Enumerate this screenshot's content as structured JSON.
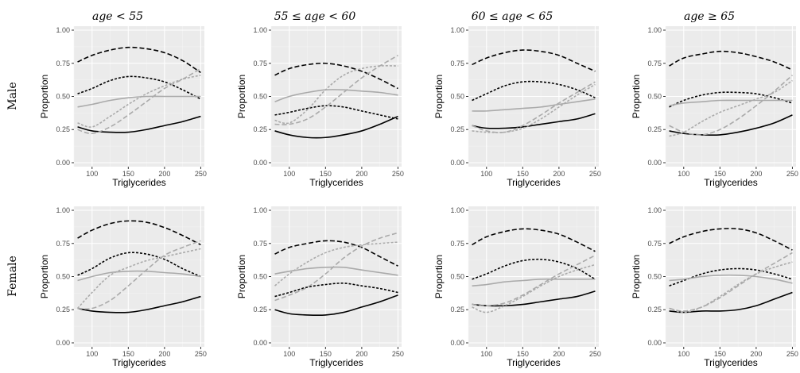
{
  "figure": {
    "column_titles": [
      "age < 55",
      "55 ≤ age < 60",
      "60 ≤ age < 65",
      "age ≥ 65"
    ],
    "row_titles": [
      "Male",
      "Female"
    ]
  },
  "chart_data": {
    "type": "line",
    "facets": "2 rows x 4 columns",
    "xlabel": "Triglycerides",
    "ylabel": "Proportion",
    "xlim": [
      75,
      255
    ],
    "ylim": [
      -0.03,
      1.03
    ],
    "xticks": [
      100,
      150,
      200,
      250
    ],
    "yticks": [
      0.0,
      0.25,
      0.5,
      0.75,
      1.0
    ],
    "ytick_labels": [
      "0.00",
      "0.25",
      "0.50",
      "0.75",
      "1.00"
    ],
    "grid": true,
    "x": [
      80,
      100,
      125,
      150,
      175,
      200,
      225,
      250
    ],
    "series_styles": [
      {
        "color": "#000000",
        "dash": "6,3"
      },
      {
        "color": "#000000",
        "dash": "3,2"
      },
      {
        "color": "#000000",
        "dash": ""
      },
      {
        "color": "#aaaaaa",
        "dash": ""
      },
      {
        "color": "#aaaaaa",
        "dash": "3,2"
      },
      {
        "color": "#aaaaaa",
        "dash": "6,3"
      }
    ],
    "panels": [
      {
        "row": 0,
        "col": 0,
        "series": [
          [
            0.76,
            0.81,
            0.85,
            0.87,
            0.86,
            0.83,
            0.77,
            0.68
          ],
          [
            0.52,
            0.56,
            0.62,
            0.65,
            0.64,
            0.61,
            0.55,
            0.48
          ],
          [
            0.27,
            0.24,
            0.23,
            0.23,
            0.25,
            0.28,
            0.31,
            0.35
          ],
          [
            0.42,
            0.44,
            0.47,
            0.49,
            0.5,
            0.5,
            0.5,
            0.5
          ],
          [
            0.3,
            0.27,
            0.35,
            0.44,
            0.52,
            0.58,
            0.63,
            0.66
          ],
          [
            0.25,
            0.22,
            0.27,
            0.36,
            0.46,
            0.56,
            0.63,
            0.71
          ]
        ]
      },
      {
        "row": 0,
        "col": 1,
        "series": [
          [
            0.66,
            0.71,
            0.74,
            0.75,
            0.73,
            0.69,
            0.63,
            0.56
          ],
          [
            0.36,
            0.38,
            0.41,
            0.43,
            0.42,
            0.39,
            0.36,
            0.33
          ],
          [
            0.24,
            0.21,
            0.19,
            0.19,
            0.21,
            0.24,
            0.29,
            0.35
          ],
          [
            0.46,
            0.5,
            0.53,
            0.55,
            0.55,
            0.54,
            0.53,
            0.51
          ],
          [
            0.32,
            0.3,
            0.4,
            0.55,
            0.66,
            0.71,
            0.73,
            0.73
          ],
          [
            0.29,
            0.29,
            0.33,
            0.42,
            0.53,
            0.64,
            0.73,
            0.81
          ]
        ]
      },
      {
        "row": 0,
        "col": 2,
        "series": [
          [
            0.74,
            0.79,
            0.83,
            0.85,
            0.84,
            0.81,
            0.75,
            0.69
          ],
          [
            0.47,
            0.52,
            0.58,
            0.61,
            0.61,
            0.59,
            0.55,
            0.49
          ],
          [
            0.28,
            0.26,
            0.26,
            0.27,
            0.29,
            0.31,
            0.33,
            0.37
          ],
          [
            0.39,
            0.39,
            0.4,
            0.41,
            0.42,
            0.44,
            0.46,
            0.48
          ],
          [
            0.24,
            0.23,
            0.23,
            0.26,
            0.33,
            0.42,
            0.51,
            0.59
          ],
          [
            0.28,
            0.24,
            0.23,
            0.28,
            0.36,
            0.45,
            0.53,
            0.61
          ]
        ]
      },
      {
        "row": 0,
        "col": 3,
        "series": [
          [
            0.73,
            0.79,
            0.82,
            0.84,
            0.83,
            0.8,
            0.76,
            0.7
          ],
          [
            0.42,
            0.47,
            0.51,
            0.53,
            0.53,
            0.52,
            0.49,
            0.45
          ],
          [
            0.24,
            0.22,
            0.21,
            0.21,
            0.23,
            0.26,
            0.3,
            0.36
          ],
          [
            0.43,
            0.45,
            0.46,
            0.47,
            0.47,
            0.47,
            0.47,
            0.47
          ],
          [
            0.2,
            0.23,
            0.31,
            0.38,
            0.43,
            0.48,
            0.53,
            0.62
          ],
          [
            0.28,
            0.23,
            0.21,
            0.25,
            0.33,
            0.43,
            0.54,
            0.66
          ]
        ]
      },
      {
        "row": 1,
        "col": 0,
        "series": [
          [
            0.79,
            0.85,
            0.9,
            0.92,
            0.91,
            0.87,
            0.81,
            0.74
          ],
          [
            0.51,
            0.56,
            0.64,
            0.68,
            0.67,
            0.63,
            0.56,
            0.5
          ],
          [
            0.26,
            0.24,
            0.23,
            0.23,
            0.25,
            0.28,
            0.31,
            0.35
          ],
          [
            0.47,
            0.5,
            0.53,
            0.54,
            0.54,
            0.53,
            0.52,
            0.5
          ],
          [
            0.26,
            0.38,
            0.51,
            0.57,
            0.62,
            0.65,
            0.68,
            0.71
          ],
          [
            0.26,
            0.26,
            0.32,
            0.43,
            0.55,
            0.66,
            0.72,
            0.77
          ]
        ]
      },
      {
        "row": 1,
        "col": 1,
        "series": [
          [
            0.67,
            0.72,
            0.75,
            0.77,
            0.76,
            0.72,
            0.65,
            0.58
          ],
          [
            0.35,
            0.38,
            0.42,
            0.44,
            0.45,
            0.43,
            0.41,
            0.38
          ],
          [
            0.25,
            0.22,
            0.21,
            0.21,
            0.23,
            0.27,
            0.31,
            0.36
          ],
          [
            0.52,
            0.54,
            0.56,
            0.57,
            0.57,
            0.55,
            0.53,
            0.51
          ],
          [
            0.43,
            0.52,
            0.61,
            0.68,
            0.72,
            0.74,
            0.75,
            0.76
          ],
          [
            0.32,
            0.36,
            0.42,
            0.52,
            0.64,
            0.73,
            0.79,
            0.83
          ]
        ]
      },
      {
        "row": 1,
        "col": 2,
        "series": [
          [
            0.74,
            0.8,
            0.84,
            0.86,
            0.85,
            0.82,
            0.76,
            0.69
          ],
          [
            0.48,
            0.52,
            0.58,
            0.62,
            0.63,
            0.61,
            0.56,
            0.48
          ],
          [
            0.29,
            0.28,
            0.28,
            0.29,
            0.31,
            0.33,
            0.35,
            0.39
          ],
          [
            0.43,
            0.44,
            0.46,
            0.47,
            0.48,
            0.48,
            0.48,
            0.48
          ],
          [
            0.27,
            0.23,
            0.28,
            0.35,
            0.43,
            0.5,
            0.55,
            0.59
          ],
          [
            0.29,
            0.28,
            0.3,
            0.36,
            0.44,
            0.52,
            0.59,
            0.66
          ]
        ]
      },
      {
        "row": 1,
        "col": 3,
        "series": [
          [
            0.75,
            0.8,
            0.84,
            0.86,
            0.86,
            0.83,
            0.77,
            0.7
          ],
          [
            0.43,
            0.47,
            0.52,
            0.55,
            0.56,
            0.55,
            0.52,
            0.48
          ],
          [
            0.24,
            0.23,
            0.24,
            0.24,
            0.25,
            0.28,
            0.33,
            0.38
          ],
          [
            0.47,
            0.48,
            0.5,
            0.51,
            0.51,
            0.5,
            0.48,
            0.45
          ],
          [
            0.26,
            0.23,
            0.27,
            0.35,
            0.44,
            0.52,
            0.57,
            0.61
          ],
          [
            0.26,
            0.24,
            0.27,
            0.34,
            0.43,
            0.52,
            0.6,
            0.68
          ]
        ]
      }
    ]
  }
}
